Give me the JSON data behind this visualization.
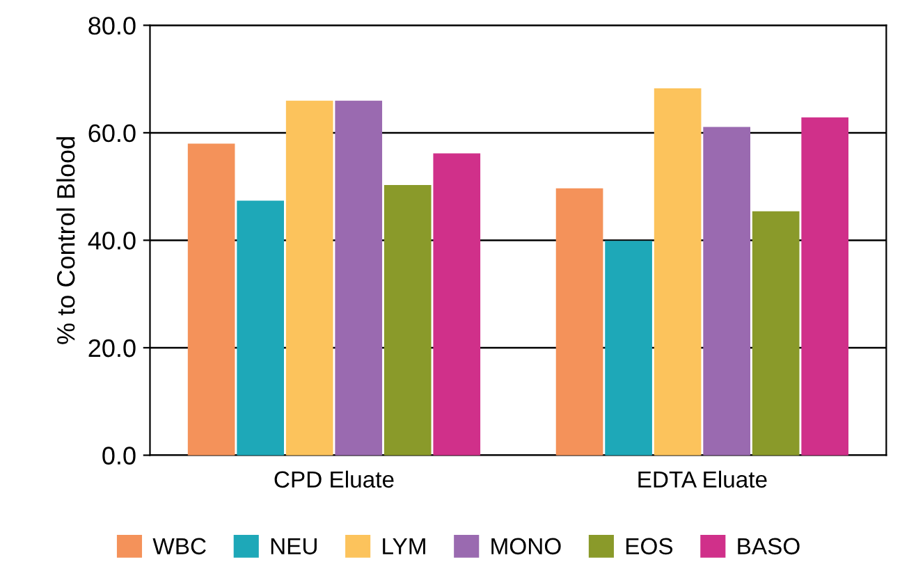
{
  "chart_data": {
    "type": "bar",
    "ylabel": "% to Control Blood",
    "categories": [
      "CPD Eluate",
      "EDTA Eluate"
    ],
    "series": [
      {
        "name": "WBC",
        "color": "#f4925a",
        "values": [
          57.8,
          49.5
        ]
      },
      {
        "name": "NEU",
        "color": "#1ea8b8",
        "values": [
          47.2,
          39.7
        ]
      },
      {
        "name": "LYM",
        "color": "#fcc35c",
        "values": [
          65.8,
          68.1
        ]
      },
      {
        "name": "MONO",
        "color": "#9a6ab0",
        "values": [
          65.8,
          60.9
        ]
      },
      {
        "name": "EOS",
        "color": "#8a9a2a",
        "values": [
          50.1,
          45.2
        ]
      },
      {
        "name": "BASO",
        "color": "#d0308a",
        "values": [
          56.0,
          62.7
        ]
      }
    ],
    "ylim": [
      0,
      80
    ],
    "yticks": [
      {
        "value": 0,
        "label": "0.0"
      },
      {
        "value": 20,
        "label": "20.0"
      },
      {
        "value": 40,
        "label": "40.0"
      },
      {
        "value": 60,
        "label": "60.0"
      },
      {
        "value": 80,
        "label": "80.0"
      }
    ],
    "grid": "y",
    "legend": "bottom"
  }
}
